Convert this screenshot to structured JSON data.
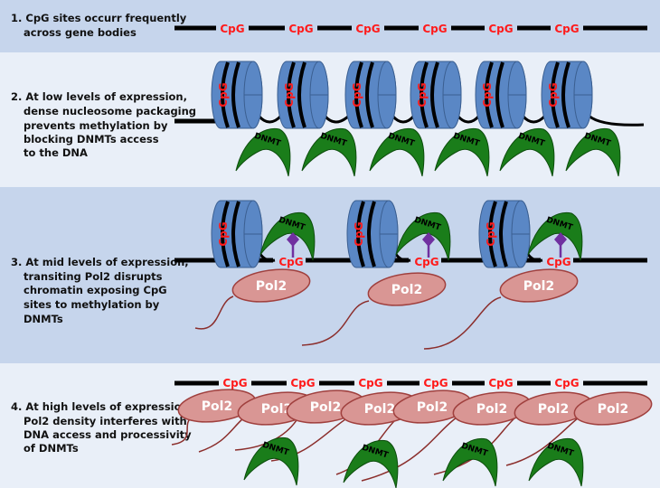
{
  "colors": {
    "panel_dark": "#c6d5ec",
    "panel_light": "#e9eff8",
    "nucleosome": "#5a87c5",
    "dnmt": "#1a7d1a",
    "pol2": "#d99694",
    "cpg": "#ff1a1a",
    "methyl": "#7030a0"
  },
  "labels": {
    "cpg": "CpG",
    "dnmt": "DNMT",
    "pol2": "Pol2"
  },
  "panels": [
    {
      "lines": [
        "1. CpG sites occurr frequently",
        "across gene bodies"
      ]
    },
    {
      "lines": [
        "2. At low levels of expression,",
        "dense nucleosome packaging",
        "prevents methylation by",
        "blocking DNMTs access",
        "to the DNA"
      ]
    },
    {
      "lines": [
        "3. At mid levels of expression,",
        "transiting Pol2 disrupts",
        "chromatin exposing CpG",
        "sites to methylation by",
        "DNMTs"
      ]
    },
    {
      "lines": [
        "4. At high levels of expression,",
        "Pol2 density interferes with",
        "DNA access and processivity",
        "of DNMTs"
      ]
    }
  ]
}
